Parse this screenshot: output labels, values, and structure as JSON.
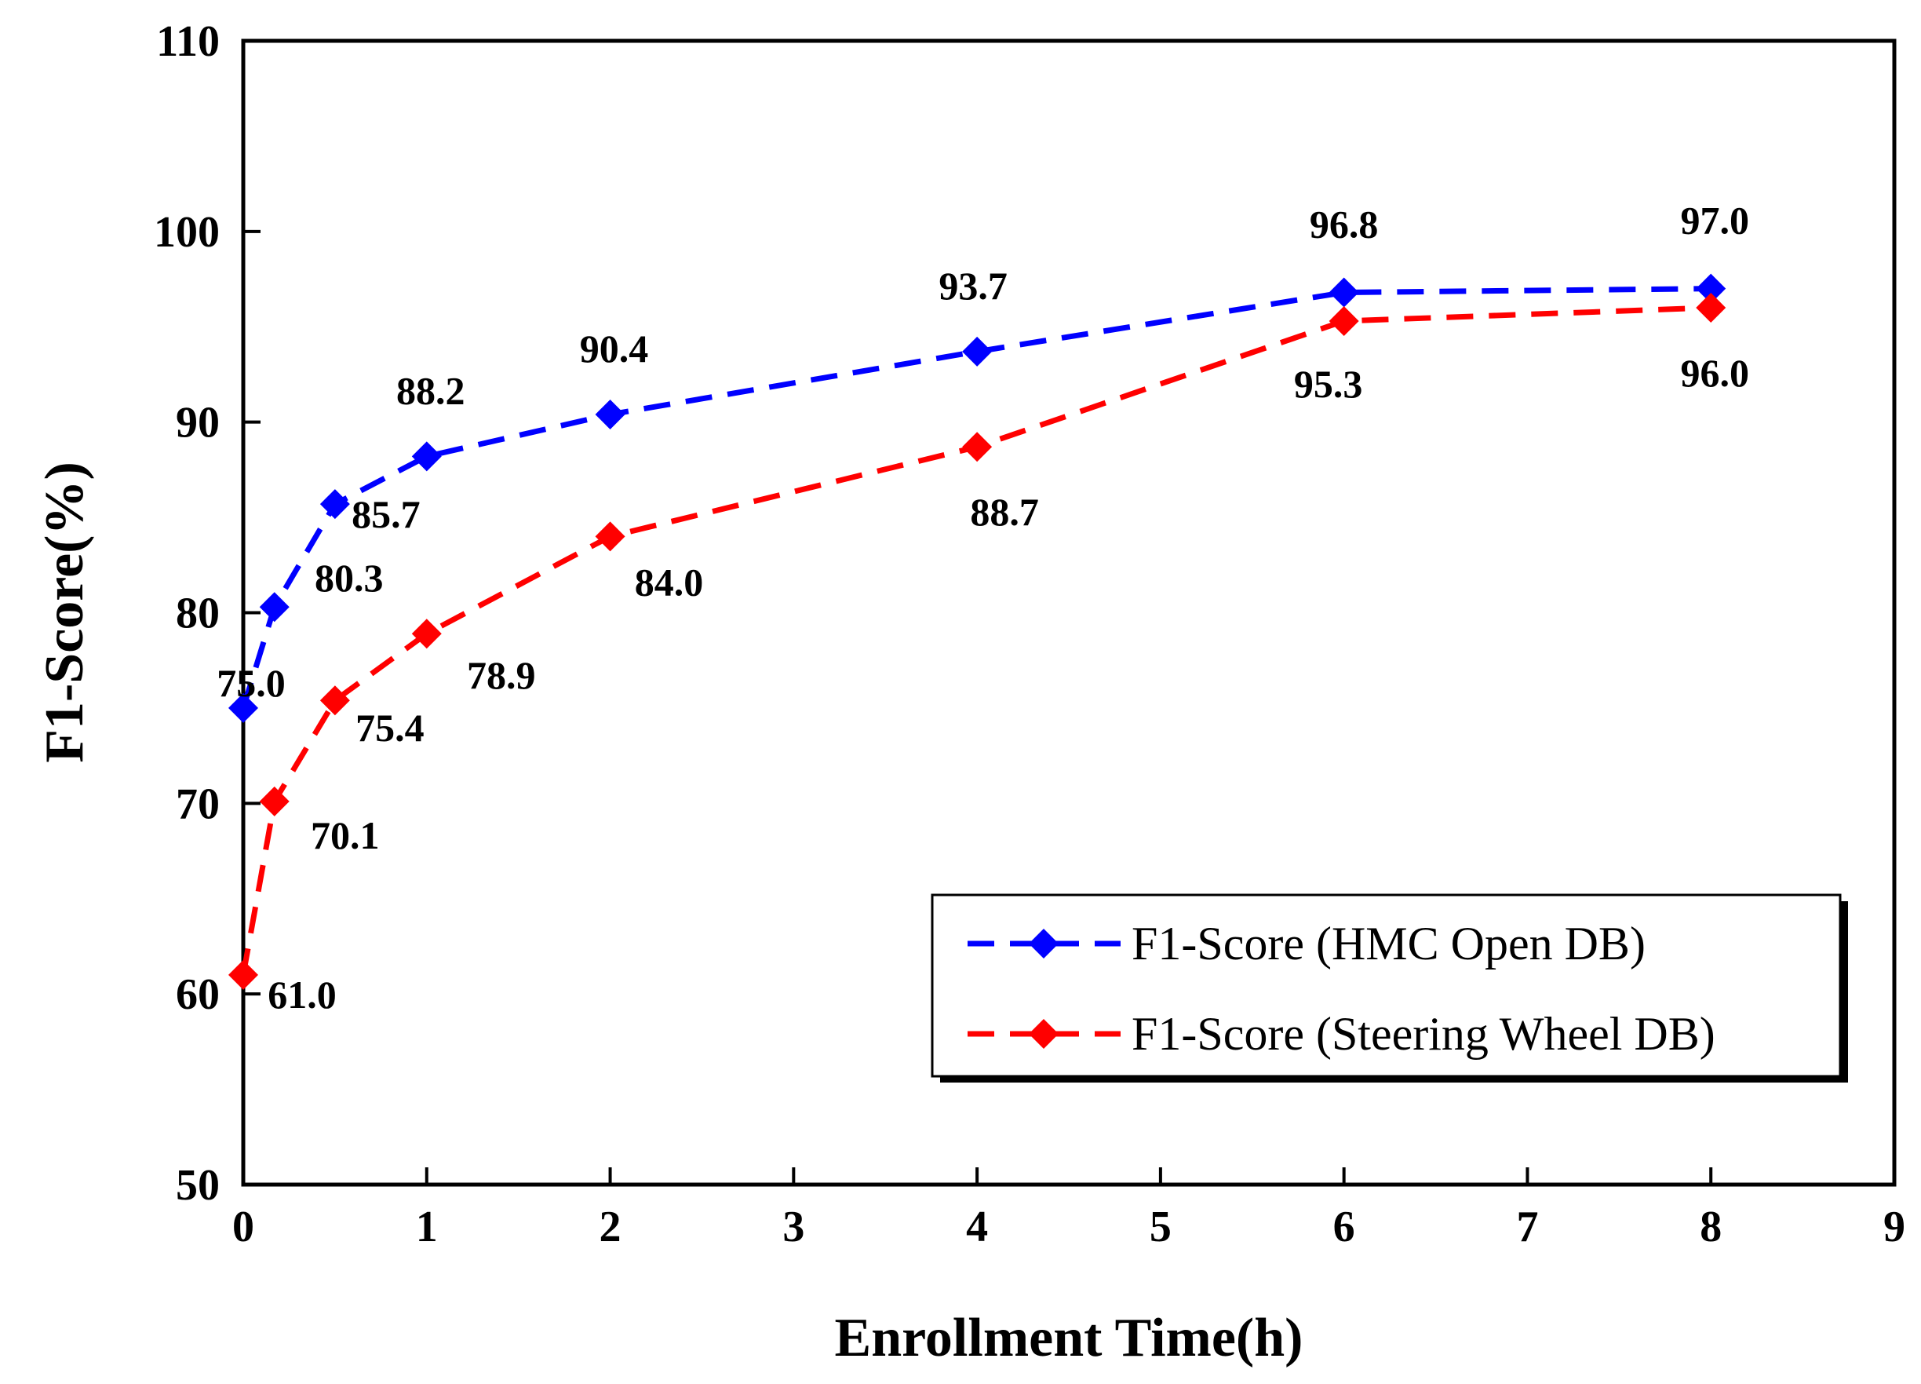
{
  "chart_data": {
    "type": "line",
    "title": "",
    "xlabel": "Enrollment Time(h)",
    "ylabel": "F1-Score(%)",
    "xlim": [
      0,
      9
    ],
    "ylim": [
      50,
      110
    ],
    "xticks": [
      0,
      1,
      2,
      3,
      4,
      5,
      6,
      7,
      8,
      9
    ],
    "yticks": [
      50,
      60,
      70,
      80,
      90,
      100,
      110
    ],
    "grid": false,
    "legend_position": "bottom-right",
    "series": [
      {
        "name": "F1-Score (HMC Open DB)",
        "color": "#0000ff",
        "marker": "diamond",
        "line_style": "dashed",
        "x": [
          0,
          0.17,
          0.5,
          1,
          2,
          4,
          6,
          8
        ],
        "values": [
          75.0,
          80.3,
          85.7,
          88.2,
          90.4,
          93.7,
          96.8,
          97.0
        ],
        "labels": [
          "75.0",
          "80.3",
          "85.7",
          "88.2",
          "90.4",
          "93.7",
          "96.8",
          "97.0"
        ]
      },
      {
        "name": "F1-Score (Steering Wheel DB)",
        "color": "#ff0000",
        "marker": "diamond",
        "line_style": "dashed",
        "x": [
          0,
          0.17,
          0.5,
          1,
          2,
          4,
          6,
          8
        ],
        "values": [
          61.0,
          70.1,
          75.4,
          78.9,
          84.0,
          88.7,
          95.3,
          96.0
        ],
        "labels": [
          "61.0",
          "70.1",
          "75.4",
          "78.9",
          "84.0",
          "88.7",
          "95.3",
          "96.0"
        ]
      }
    ]
  }
}
